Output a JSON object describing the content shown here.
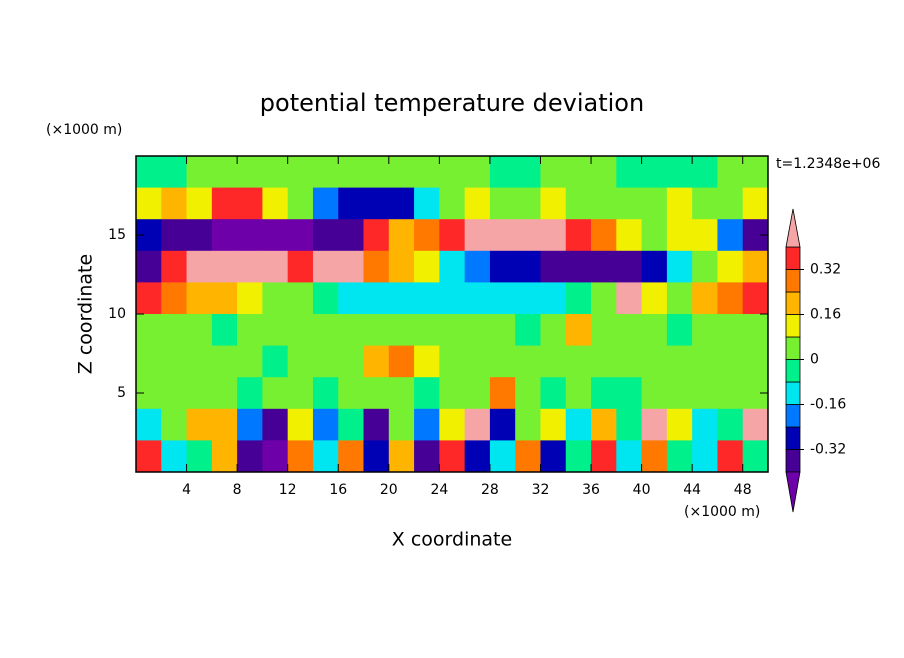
{
  "chart_data": {
    "type": "contour",
    "title": "potential temperature deviation",
    "annotation": "t=1.2348e+06",
    "x_label": "X coordinate",
    "y_label": "Z coordinate",
    "x_unit": "(×1000 m)",
    "y_unit": "(×1000 m)",
    "xlim": [
      0,
      50
    ],
    "ylim": [
      0,
      20
    ],
    "xticks": [
      4,
      8,
      12,
      16,
      20,
      24,
      28,
      32,
      36,
      40,
      44,
      48
    ],
    "yticks": [
      5,
      10,
      15
    ],
    "x": [
      1,
      3,
      5,
      7,
      9,
      11,
      13,
      15,
      17,
      19,
      21,
      23,
      25,
      27,
      29,
      31,
      33,
      35,
      37,
      39,
      41,
      43,
      45,
      47,
      49
    ],
    "y": [
      19,
      17,
      15,
      13,
      11,
      9,
      7,
      5,
      3,
      1
    ],
    "z": [
      [
        -0.04,
        -0.04,
        0.04,
        0.04,
        0.04,
        0.04,
        0.04,
        0.04,
        0.04,
        0.04,
        0.04,
        0.04,
        0.04,
        0.04,
        -0.04,
        -0.04,
        0.04,
        0.04,
        0.04,
        -0.04,
        -0.04,
        -0.04,
        -0.04,
        0.04,
        0.04
      ],
      [
        0.12,
        0.2,
        0.12,
        0.36,
        0.36,
        0.12,
        0.04,
        -0.2,
        -0.28,
        -0.28,
        -0.28,
        -0.12,
        0.04,
        0.12,
        0.04,
        0.04,
        0.12,
        0.04,
        0.04,
        0.04,
        0.04,
        0.12,
        0.04,
        0.04,
        0.12
      ],
      [
        -0.28,
        -0.36,
        -0.36,
        -0.44,
        -0.44,
        -0.44,
        -0.44,
        -0.36,
        -0.36,
        0.36,
        0.2,
        0.28,
        0.36,
        0.44,
        0.44,
        0.44,
        0.44,
        0.36,
        0.28,
        0.12,
        0.04,
        0.12,
        0.12,
        -0.2,
        -0.36
      ],
      [
        -0.36,
        0.36,
        0.44,
        0.44,
        0.44,
        0.44,
        0.36,
        0.44,
        0.44,
        0.28,
        0.2,
        0.12,
        -0.12,
        -0.2,
        -0.28,
        -0.28,
        -0.36,
        -0.36,
        -0.36,
        -0.36,
        -0.28,
        -0.12,
        0.04,
        0.12,
        0.2
      ],
      [
        0.36,
        0.28,
        0.2,
        0.2,
        0.12,
        0.04,
        0.04,
        -0.04,
        -0.12,
        -0.12,
        -0.12,
        -0.12,
        -0.12,
        -0.12,
        -0.12,
        -0.12,
        -0.12,
        -0.04,
        0.04,
        0.44,
        0.12,
        0.04,
        0.2,
        0.28,
        0.36
      ],
      [
        0.04,
        0.04,
        0.04,
        -0.04,
        0.04,
        0.04,
        0.04,
        0.04,
        0.04,
        0.04,
        0.04,
        0.04,
        0.04,
        0.04,
        0.04,
        -0.04,
        0.04,
        0.2,
        0.04,
        0.04,
        0.04,
        -0.04,
        0.04,
        0.04,
        0.04
      ],
      [
        0.04,
        0.04,
        0.04,
        0.04,
        0.04,
        -0.04,
        0.04,
        0.04,
        0.04,
        0.2,
        0.28,
        0.12,
        0.04,
        0.04,
        0.04,
        0.04,
        0.04,
        0.04,
        0.04,
        0.04,
        0.04,
        0.04,
        0.04,
        0.04,
        0.04
      ],
      [
        0.04,
        0.04,
        0.04,
        0.04,
        -0.04,
        0.04,
        0.04,
        -0.04,
        0.04,
        0.04,
        0.04,
        -0.04,
        0.04,
        0.04,
        0.28,
        0.04,
        -0.04,
        0.04,
        -0.04,
        -0.04,
        0.04,
        0.04,
        0.04,
        0.04,
        0.04
      ],
      [
        -0.12,
        0.04,
        0.2,
        0.2,
        -0.2,
        -0.36,
        0.12,
        -0.2,
        -0.04,
        -0.36,
        0.04,
        -0.2,
        0.12,
        0.44,
        -0.28,
        0.04,
        0.12,
        -0.12,
        0.2,
        -0.04,
        0.44,
        0.12,
        -0.12,
        -0.04,
        0.44
      ],
      [
        0.36,
        -0.12,
        -0.04,
        0.2,
        -0.36,
        -0.44,
        0.28,
        -0.12,
        0.28,
        -0.28,
        0.2,
        -0.36,
        0.36,
        -0.28,
        -0.12,
        0.28,
        -0.28,
        -0.04,
        0.36,
        -0.12,
        0.28,
        -0.04,
        -0.12,
        0.36,
        -0.04
      ]
    ],
    "levels": [
      -0.4,
      -0.32,
      -0.24,
      -0.16,
      -0.08,
      0,
      0.08,
      0.16,
      0.24,
      0.32,
      0.4
    ],
    "colors": [
      "#6e00aa",
      "#460096",
      "#0000b4",
      "#0078ff",
      "#00e6f0",
      "#00f08c",
      "#78f032",
      "#f0f000",
      "#ffb400",
      "#ff7800",
      "#ff2828",
      "#f5a5a5"
    ],
    "colorbar_ticks": [
      0.32,
      0.16,
      0,
      -0.16,
      -0.32
    ]
  }
}
